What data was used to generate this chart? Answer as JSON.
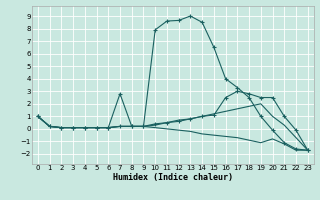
{
  "xlabel": "Humidex (Indice chaleur)",
  "xlim": [
    -0.5,
    23.5
  ],
  "ylim": [
    -2.8,
    9.8
  ],
  "yticks": [
    -2,
    -1,
    0,
    1,
    2,
    3,
    4,
    5,
    6,
    7,
    8,
    9
  ],
  "xticks": [
    0,
    1,
    2,
    3,
    4,
    5,
    6,
    7,
    8,
    9,
    10,
    11,
    12,
    13,
    14,
    15,
    16,
    17,
    18,
    19,
    20,
    21,
    22,
    23
  ],
  "bg_color": "#c9e8e0",
  "line_color": "#1a6060",
  "grid_color": "#ffffff",
  "curve1_x": [
    0,
    1,
    2,
    3,
    4,
    5,
    6,
    7,
    8,
    9,
    10,
    11,
    12,
    13,
    14,
    15,
    16,
    17,
    18,
    19,
    20,
    21,
    22,
    23
  ],
  "curve1_y": [
    1.0,
    0.2,
    0.1,
    0.1,
    0.1,
    0.1,
    0.1,
    2.8,
    0.2,
    0.2,
    7.9,
    8.6,
    8.65,
    9.0,
    8.5,
    6.5,
    4.0,
    3.3,
    2.5,
    1.0,
    -0.1,
    -1.1,
    -1.6,
    -1.7
  ],
  "curve2_x": [
    0,
    1,
    2,
    3,
    4,
    5,
    6,
    7,
    8,
    9,
    10,
    11,
    12,
    13,
    14,
    15,
    16,
    17,
    18,
    19,
    20,
    21,
    22,
    23
  ],
  "curve2_y": [
    1.0,
    0.2,
    0.1,
    0.1,
    0.1,
    0.1,
    0.1,
    0.2,
    0.2,
    0.2,
    0.4,
    0.5,
    0.6,
    0.8,
    1.0,
    1.1,
    2.5,
    3.0,
    2.8,
    2.5,
    2.5,
    1.0,
    -0.1,
    -1.7
  ],
  "curve3_x": [
    0,
    1,
    2,
    3,
    4,
    5,
    6,
    7,
    8,
    9,
    10,
    11,
    12,
    13,
    14,
    15,
    16,
    17,
    18,
    19,
    20,
    21,
    22,
    23
  ],
  "curve3_y": [
    1.0,
    0.2,
    0.1,
    0.1,
    0.1,
    0.1,
    0.1,
    0.2,
    0.2,
    0.2,
    0.3,
    0.5,
    0.7,
    0.8,
    1.0,
    1.2,
    1.4,
    1.6,
    1.8,
    2.0,
    1.0,
    0.3,
    -0.7,
    -1.7
  ],
  "curve4_x": [
    0,
    1,
    2,
    3,
    4,
    5,
    6,
    7,
    8,
    9,
    10,
    11,
    12,
    13,
    14,
    15,
    16,
    17,
    18,
    19,
    20,
    21,
    22,
    23
  ],
  "curve4_y": [
    1.0,
    0.2,
    0.1,
    0.1,
    0.1,
    0.1,
    0.1,
    0.2,
    0.2,
    0.2,
    0.1,
    0.0,
    -0.1,
    -0.2,
    -0.4,
    -0.5,
    -0.6,
    -0.7,
    -0.9,
    -1.1,
    -0.8,
    -1.2,
    -1.7,
    -1.7
  ]
}
